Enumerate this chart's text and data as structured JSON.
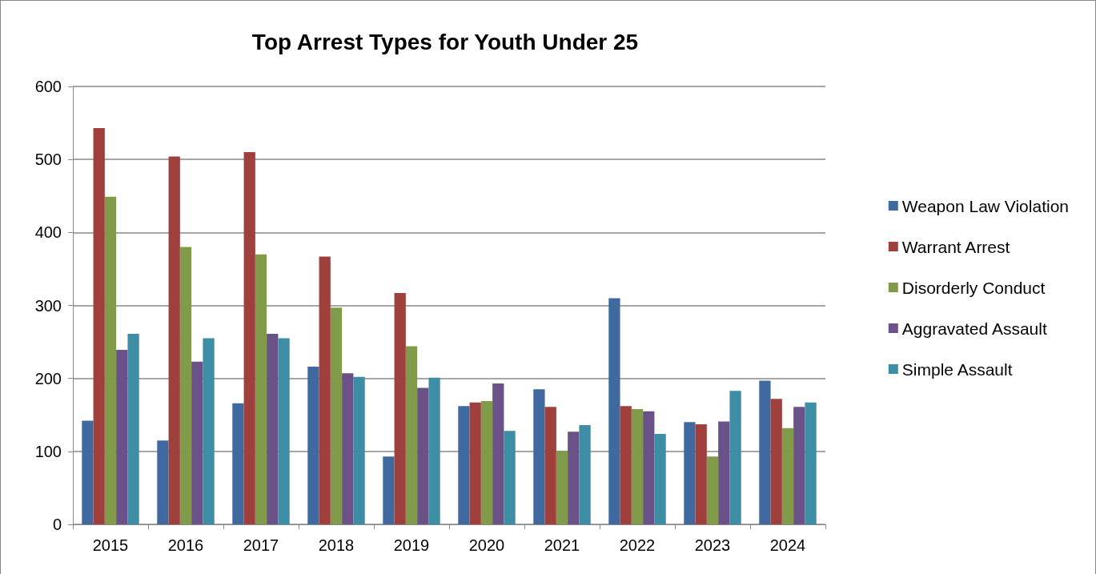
{
  "chart_data": {
    "type": "bar",
    "title": "Top Arrest Types for Youth Under 25",
    "categories": [
      "2015",
      "2016",
      "2017",
      "2018",
      "2019",
      "2020",
      "2021",
      "2022",
      "2023",
      "2024"
    ],
    "series": [
      {
        "name": "Weapon Law Violation",
        "color": "#4069a0",
        "values": [
          142,
          115,
          166,
          216,
          93,
          162,
          185,
          310,
          140,
          197
        ]
      },
      {
        "name": "Warrant Arrest",
        "color": "#a0403d",
        "values": [
          543,
          504,
          510,
          367,
          317,
          167,
          161,
          162,
          137,
          172
        ]
      },
      {
        "name": "Disorderly Conduct",
        "color": "#809b49",
        "values": [
          449,
          380,
          370,
          297,
          244,
          169,
          101,
          158,
          93,
          132
        ]
      },
      {
        "name": "Aggravated Assault",
        "color": "#6a5187",
        "values": [
          239,
          223,
          261,
          207,
          187,
          193,
          127,
          155,
          141,
          161
        ]
      },
      {
        "name": "Simple Assault",
        "color": "#3d8ea5",
        "values": [
          261,
          255,
          255,
          202,
          201,
          128,
          136,
          124,
          183,
          167
        ]
      }
    ],
    "ylim": [
      0,
      600
    ],
    "yticks": [
      0,
      100,
      200,
      300,
      400,
      500,
      600
    ],
    "grid": "y",
    "legend": "right"
  }
}
